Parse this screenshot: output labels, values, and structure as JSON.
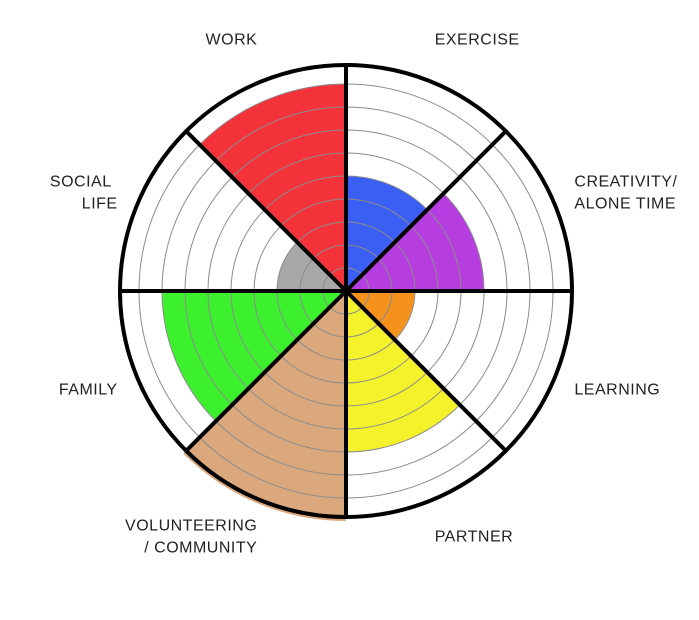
{
  "chart_data": {
    "type": "radial-bar",
    "max_value": 10,
    "rings": 10,
    "grid": true,
    "categories": [
      {
        "label": [
          "EXERCISE"
        ],
        "value": 5,
        "color": "#3b5ff5"
      },
      {
        "label": [
          "CREATIVITY/",
          "ALONE TIME"
        ],
        "value": 6,
        "color": "#b63ee0"
      },
      {
        "label": [
          "LEARNING"
        ],
        "value": 3,
        "color": "#f5921e"
      },
      {
        "label": [
          "PARTNER"
        ],
        "value": 7,
        "color": "#f4f22a"
      },
      {
        "label": [
          "VOLUNTEERING",
          "/ COMMUNITY"
        ],
        "value": 10,
        "color": "#dba77c"
      },
      {
        "label": [
          "FAMILY"
        ],
        "value": 8,
        "color": "#3cf02e"
      },
      {
        "label": [
          "SOCIAL",
          "LIFE"
        ],
        "value": 3,
        "color": "#a8a8a8"
      },
      {
        "label": [
          "WORK"
        ],
        "value": 9,
        "color": "#f4323a"
      }
    ]
  }
}
